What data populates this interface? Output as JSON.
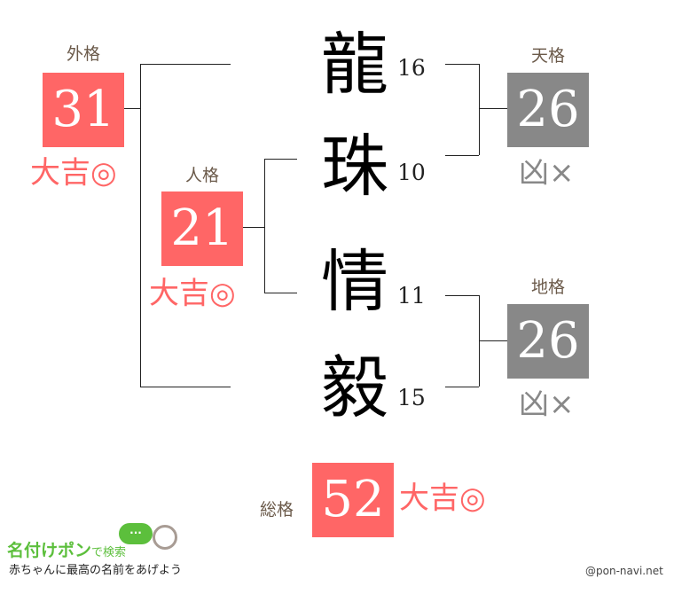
{
  "colors": {
    "good": "#ff6666",
    "bad": "#888888",
    "label": "#6b5a4a",
    "logo_green": "#5cbf3c"
  },
  "name": [
    {
      "char": "龍",
      "strokes": "16"
    },
    {
      "char": "珠",
      "strokes": "10"
    },
    {
      "char": "情",
      "strokes": "11"
    },
    {
      "char": "毅",
      "strokes": "15"
    }
  ],
  "gaikaku": {
    "label": "外格",
    "value": "31",
    "result": "大吉◎"
  },
  "jinkaku": {
    "label": "人格",
    "value": "21",
    "result": "大吉◎"
  },
  "tenkaku": {
    "label": "天格",
    "value": "26",
    "result": "凶×"
  },
  "chikaku": {
    "label": "地格",
    "value": "26",
    "result": "凶×"
  },
  "soukaku": {
    "label": "総格",
    "value": "52",
    "result": "大吉◎"
  },
  "logo": {
    "title": "名付けポン",
    "suffix": "で検索",
    "tagline": "赤ちゃんに最高の名前をあげよう",
    "bubble": "..."
  },
  "credit": "@pon-navi.net"
}
